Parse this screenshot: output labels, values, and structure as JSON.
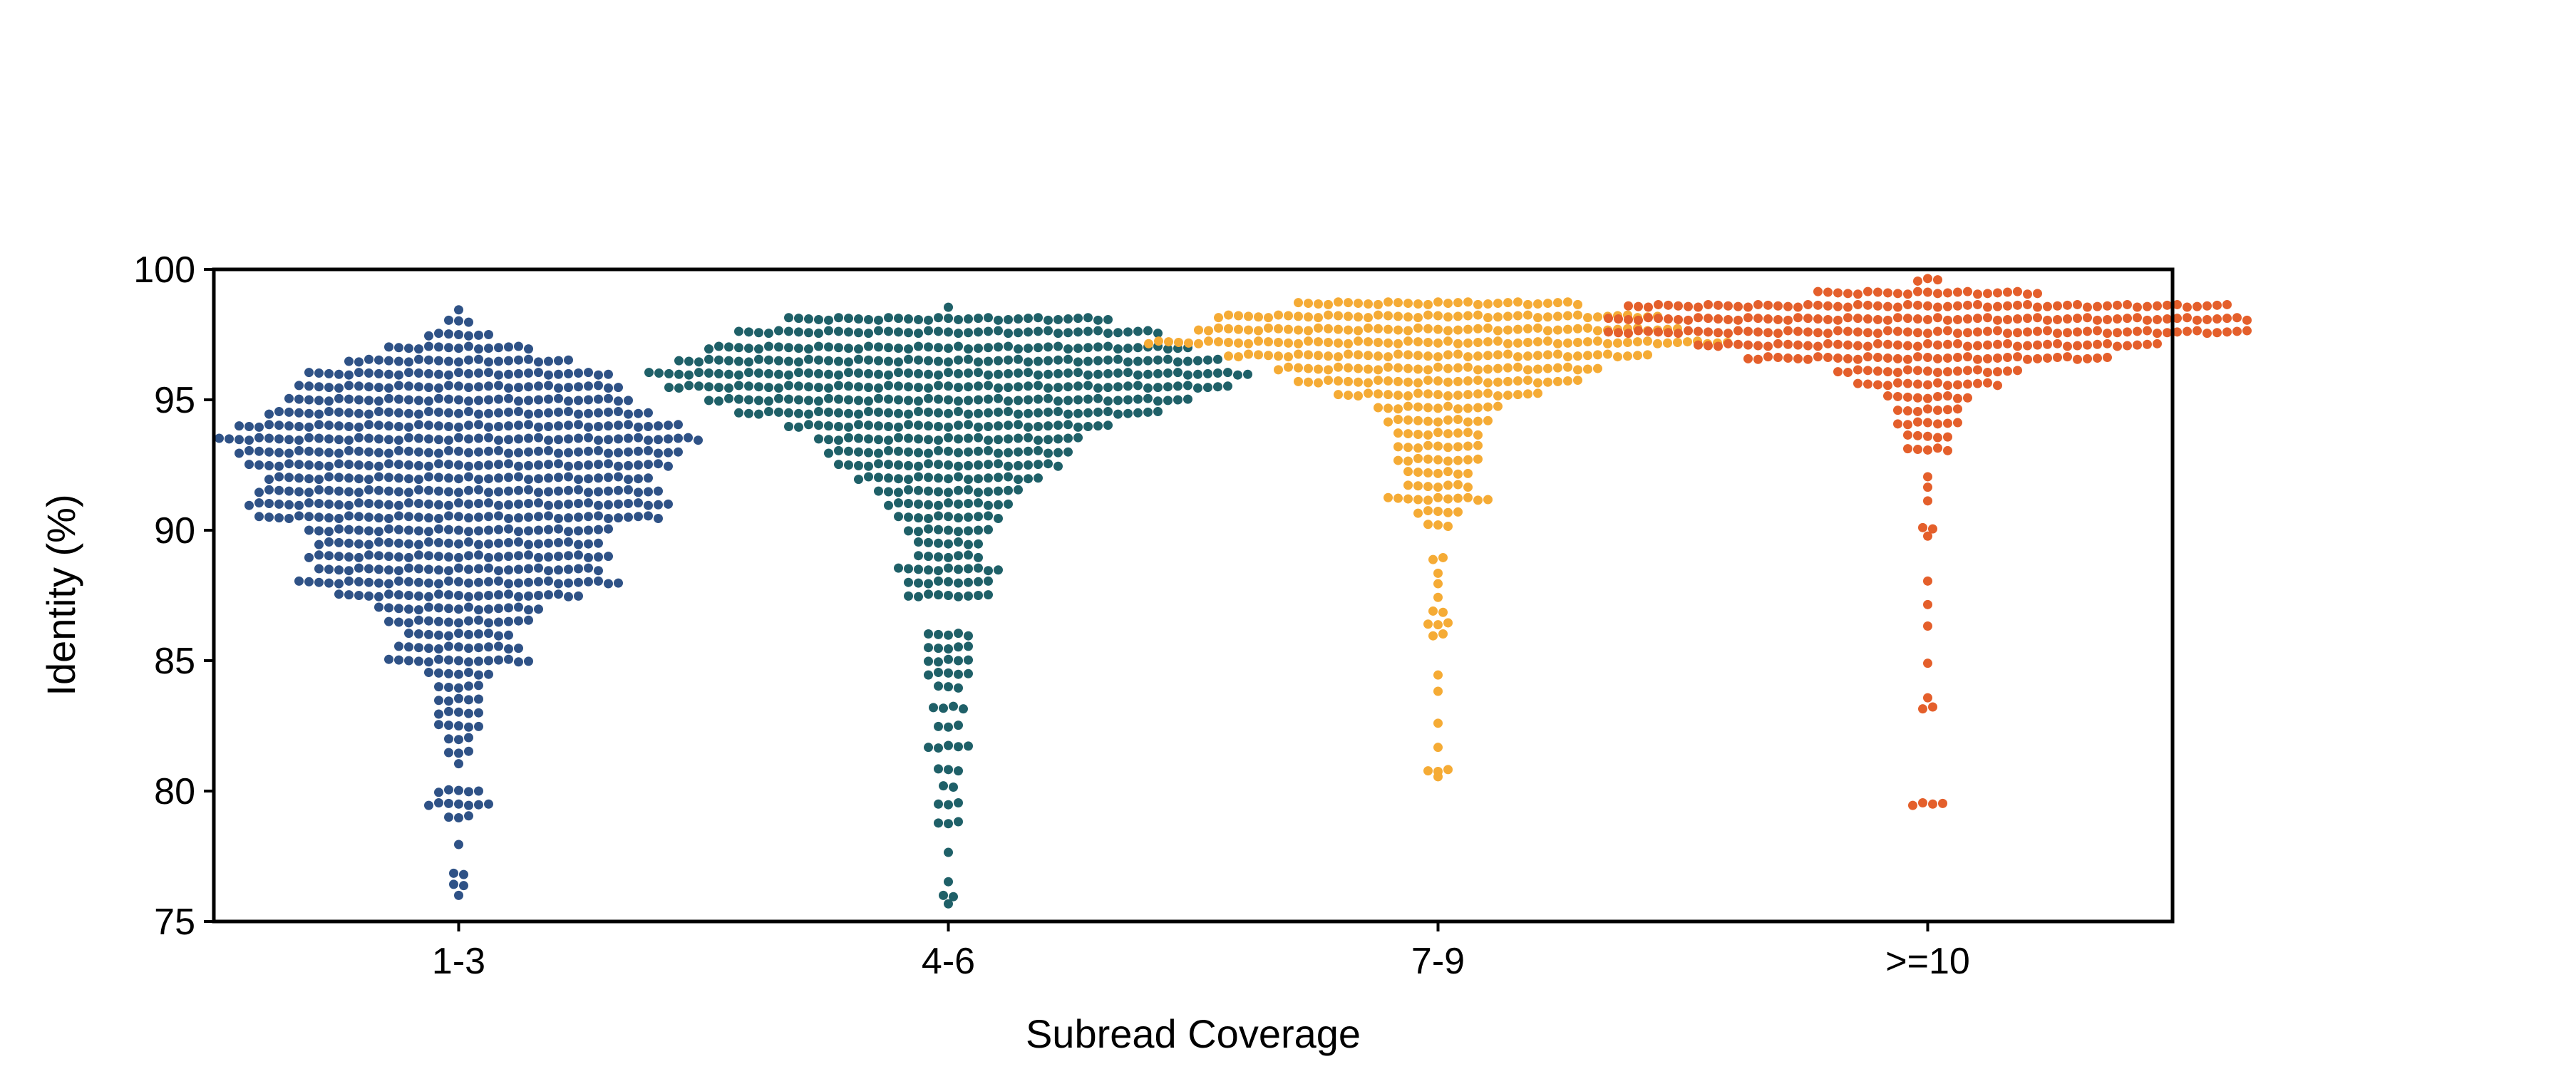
{
  "chart_data": {
    "type": "scatter",
    "subtype": "swarm",
    "title": "",
    "xlabel": "Subread Coverage",
    "ylabel": "Identity (%)",
    "ylim": [
      75,
      100
    ],
    "yticks": [
      "75",
      "80",
      "85",
      "90",
      "95",
      "100"
    ],
    "categories": [
      "1-3",
      "4-6",
      "7-9",
      ">=10"
    ],
    "grid": false,
    "series": [
      {
        "name": "1-3",
        "color": "#2f5286",
        "bins": [
          {
            "y": 98.4,
            "n": 1
          },
          {
            "y": 98.0,
            "n": 3
          },
          {
            "y": 97.5,
            "n": 7
          },
          {
            "y": 97.0,
            "n": 15
          },
          {
            "y": 96.5,
            "n": 23
          },
          {
            "y": 96.0,
            "n": 31
          },
          {
            "y": 95.5,
            "n": 33
          },
          {
            "y": 95.0,
            "n": 35
          },
          {
            "y": 94.5,
            "n": 39
          },
          {
            "y": 94.0,
            "n": 45
          },
          {
            "y": 93.5,
            "n": 49
          },
          {
            "y": 93.0,
            "n": 45
          },
          {
            "y": 92.5,
            "n": 43
          },
          {
            "y": 92.0,
            "n": 39
          },
          {
            "y": 91.5,
            "n": 41
          },
          {
            "y": 91.0,
            "n": 43
          },
          {
            "y": 90.5,
            "n": 41
          },
          {
            "y": 90.0,
            "n": 31
          },
          {
            "y": 89.5,
            "n": 29
          },
          {
            "y": 89.0,
            "n": 31
          },
          {
            "y": 88.5,
            "n": 29
          },
          {
            "y": 88.0,
            "n": 33
          },
          {
            "y": 87.5,
            "n": 25
          },
          {
            "y": 87.0,
            "n": 17
          },
          {
            "y": 86.5,
            "n": 15
          },
          {
            "y": 86.0,
            "n": 11
          },
          {
            "y": 85.5,
            "n": 13
          },
          {
            "y": 85.0,
            "n": 15
          },
          {
            "y": 84.5,
            "n": 7
          },
          {
            "y": 84.0,
            "n": 5
          },
          {
            "y": 83.5,
            "n": 5
          },
          {
            "y": 83.0,
            "n": 5
          },
          {
            "y": 82.5,
            "n": 5
          },
          {
            "y": 82.0,
            "n": 3
          },
          {
            "y": 81.5,
            "n": 3
          },
          {
            "y": 81.0,
            "n": 1
          },
          {
            "y": 80.0,
            "n": 5
          },
          {
            "y": 79.5,
            "n": 7
          },
          {
            "y": 79.0,
            "n": 3
          },
          {
            "y": 78.0,
            "n": 1
          },
          {
            "y": 76.8,
            "n": 2
          },
          {
            "y": 76.4,
            "n": 2
          },
          {
            "y": 76.0,
            "n": 1
          }
        ]
      },
      {
        "name": "4-6",
        "color": "#1f6068",
        "bins": [
          {
            "y": 98.5,
            "n": 1
          },
          {
            "y": 98.1,
            "n": 33
          },
          {
            "y": 97.6,
            "n": 43
          },
          {
            "y": 97.0,
            "n": 49
          },
          {
            "y": 96.5,
            "n": 55
          },
          {
            "y": 96.0,
            "n": 61
          },
          {
            "y": 95.5,
            "n": 57
          },
          {
            "y": 95.0,
            "n": 49
          },
          {
            "y": 94.5,
            "n": 43
          },
          {
            "y": 94.0,
            "n": 33
          },
          {
            "y": 93.5,
            "n": 27
          },
          {
            "y": 93.0,
            "n": 25
          },
          {
            "y": 92.5,
            "n": 23
          },
          {
            "y": 92.0,
            "n": 19
          },
          {
            "y": 91.5,
            "n": 15
          },
          {
            "y": 91.0,
            "n": 13
          },
          {
            "y": 90.5,
            "n": 11
          },
          {
            "y": 90.0,
            "n": 9
          },
          {
            "y": 89.5,
            "n": 7
          },
          {
            "y": 89.0,
            "n": 7
          },
          {
            "y": 88.5,
            "n": 11
          },
          {
            "y": 88.0,
            "n": 9
          },
          {
            "y": 87.5,
            "n": 9
          },
          {
            "y": 86.0,
            "n": 5
          },
          {
            "y": 85.5,
            "n": 5
          },
          {
            "y": 85.0,
            "n": 5
          },
          {
            "y": 84.5,
            "n": 5
          },
          {
            "y": 84.0,
            "n": 3
          },
          {
            "y": 83.2,
            "n": 4
          },
          {
            "y": 82.5,
            "n": 3
          },
          {
            "y": 81.7,
            "n": 5
          },
          {
            "y": 80.8,
            "n": 3
          },
          {
            "y": 80.2,
            "n": 2
          },
          {
            "y": 79.5,
            "n": 3
          },
          {
            "y": 78.8,
            "n": 3
          },
          {
            "y": 77.6,
            "n": 1
          },
          {
            "y": 76.5,
            "n": 1
          },
          {
            "y": 76.0,
            "n": 2
          },
          {
            "y": 75.7,
            "n": 1
          }
        ]
      },
      {
        "name": "7-9",
        "color": "#f5ab35",
        "bins": [
          {
            "y": 98.7,
            "n": 29
          },
          {
            "y": 98.2,
            "n": 45
          },
          {
            "y": 97.7,
            "n": 49
          },
          {
            "y": 97.2,
            "n": 59
          },
          {
            "y": 96.7,
            "n": 43
          },
          {
            "y": 96.2,
            "n": 33
          },
          {
            "y": 95.7,
            "n": 29
          },
          {
            "y": 95.2,
            "n": 21
          },
          {
            "y": 94.7,
            "n": 13
          },
          {
            "y": 94.2,
            "n": 11
          },
          {
            "y": 93.7,
            "n": 9
          },
          {
            "y": 93.2,
            "n": 9
          },
          {
            "y": 92.7,
            "n": 9
          },
          {
            "y": 92.2,
            "n": 7
          },
          {
            "y": 91.7,
            "n": 7
          },
          {
            "y": 91.2,
            "n": 11
          },
          {
            "y": 90.7,
            "n": 5
          },
          {
            "y": 90.2,
            "n": 3
          },
          {
            "y": 88.9,
            "n": 2
          },
          {
            "y": 88.4,
            "n": 1
          },
          {
            "y": 87.9,
            "n": 1
          },
          {
            "y": 87.4,
            "n": 1
          },
          {
            "y": 86.9,
            "n": 2
          },
          {
            "y": 86.4,
            "n": 3
          },
          {
            "y": 86.0,
            "n": 2
          },
          {
            "y": 84.4,
            "n": 1
          },
          {
            "y": 83.8,
            "n": 1
          },
          {
            "y": 82.6,
            "n": 1
          },
          {
            "y": 81.7,
            "n": 1
          },
          {
            "y": 80.8,
            "n": 3
          },
          {
            "y": 80.5,
            "n": 1
          }
        ]
      },
      {
        "name": ">=10",
        "color": "#e45f2b",
        "bins": [
          {
            "y": 99.6,
            "n": 3
          },
          {
            "y": 99.1,
            "n": 23
          },
          {
            "y": 98.6,
            "n": 61
          },
          {
            "y": 98.1,
            "n": 65
          },
          {
            "y": 97.6,
            "n": 65
          },
          {
            "y": 97.1,
            "n": 47
          },
          {
            "y": 96.6,
            "n": 37
          },
          {
            "y": 96.1,
            "n": 19
          },
          {
            "y": 95.6,
            "n": 15
          },
          {
            "y": 95.1,
            "n": 9
          },
          {
            "y": 94.6,
            "n": 7
          },
          {
            "y": 94.1,
            "n": 7
          },
          {
            "y": 93.6,
            "n": 5
          },
          {
            "y": 93.1,
            "n": 5
          },
          {
            "y": 92.1,
            "n": 1
          },
          {
            "y": 91.6,
            "n": 1
          },
          {
            "y": 91.1,
            "n": 1
          },
          {
            "y": 90.1,
            "n": 2
          },
          {
            "y": 89.8,
            "n": 1
          },
          {
            "y": 88.1,
            "n": 1
          },
          {
            "y": 87.1,
            "n": 1
          },
          {
            "y": 86.3,
            "n": 1
          },
          {
            "y": 84.9,
            "n": 1
          },
          {
            "y": 83.6,
            "n": 1
          },
          {
            "y": 83.2,
            "n": 2
          },
          {
            "y": 79.5,
            "n": 4
          }
        ]
      }
    ]
  }
}
